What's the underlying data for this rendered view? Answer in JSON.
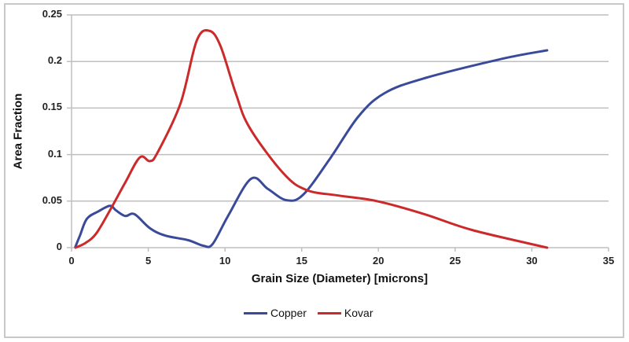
{
  "chart_data": {
    "type": "line",
    "title": "",
    "xlabel": "Grain Size (Diameter) [microns]",
    "ylabel": "Area Fraction",
    "xlim": [
      0,
      35
    ],
    "ylim": [
      0,
      0.25
    ],
    "x_ticks": [
      "0",
      "5",
      "10",
      "15",
      "20",
      "25",
      "30",
      "35"
    ],
    "y_ticks": [
      "0",
      "0.05",
      "0.1",
      "0.15",
      "0.2",
      "0.25"
    ],
    "grid": {
      "horizontal": true,
      "vertical": false
    },
    "legend_position": "bottom",
    "series": [
      {
        "name": "Copper",
        "color": "#3a4a9a",
        "x": [
          0.25,
          0.55,
          1.0,
          1.75,
          2.5,
          2.9,
          3.5,
          4.1,
          5.1,
          6.1,
          7.6,
          8.6,
          9.2,
          10.2,
          11.7,
          12.8,
          14.0,
          15.1,
          16.9,
          18.7,
          20.4,
          23.0,
          28.1,
          31.0
        ],
        "y": [
          0.001,
          0.013,
          0.031,
          0.039,
          0.045,
          0.04,
          0.034,
          0.036,
          0.021,
          0.013,
          0.008,
          0.002,
          0.004,
          0.034,
          0.074,
          0.063,
          0.051,
          0.057,
          0.097,
          0.141,
          0.166,
          0.182,
          0.203,
          0.212
        ]
      },
      {
        "name": "Kovar",
        "color": "#cc2a2a",
        "x": [
          0.25,
          0.9,
          1.6,
          2.5,
          3.5,
          4.45,
          5.1,
          5.6,
          7.1,
          8.15,
          8.97,
          9.7,
          10.7,
          11.6,
          13.8,
          15.3,
          17.4,
          19.9,
          23.0,
          26.1,
          31.0
        ],
        "y": [
          0.0,
          0.005,
          0.015,
          0.04,
          0.07,
          0.097,
          0.093,
          0.102,
          0.155,
          0.222,
          0.233,
          0.217,
          0.166,
          0.129,
          0.08,
          0.062,
          0.056,
          0.05,
          0.036,
          0.019,
          0.0
        ]
      }
    ]
  },
  "legend": {
    "items": [
      {
        "label": "Copper",
        "color": "#3a4a9a"
      },
      {
        "label": "Kovar",
        "color": "#cc2a2a"
      }
    ]
  },
  "colors": {
    "gridline": "#bfbfbf",
    "axis": "#bfbfbf",
    "frame": "#c8c8c8"
  }
}
